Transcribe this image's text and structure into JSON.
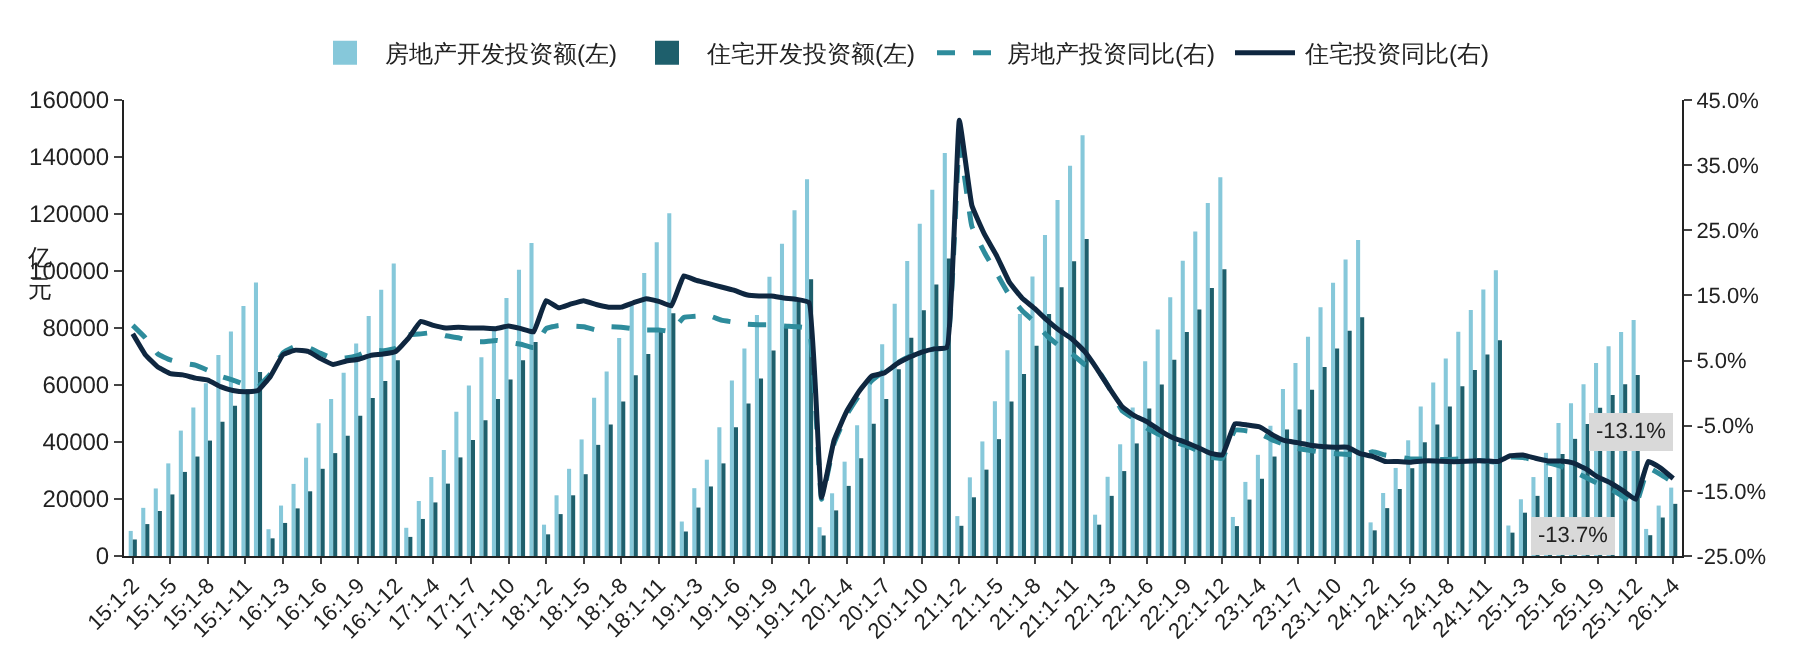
{
  "chart_data": {
    "type": "bar",
    "ylabel": "亿元",
    "categories": [
      "15:1-2",
      null,
      null,
      "15:1-5",
      null,
      null,
      "15:1-8",
      null,
      null,
      "15:1-11",
      null,
      null,
      "16:1-3",
      null,
      null,
      "16:1-6",
      null,
      null,
      "16:1-9",
      null,
      null,
      "16:1-12",
      null,
      null,
      "17:1-4",
      null,
      null,
      "17:1-7",
      null,
      null,
      "17:1-10",
      null,
      null,
      "18:1-2",
      null,
      null,
      "18:1-5",
      null,
      null,
      "18:1-8",
      null,
      null,
      "18:1-11",
      null,
      null,
      "19:1-3",
      null,
      null,
      "19:1-6",
      null,
      null,
      "19:1-9",
      null,
      null,
      "19:1-12",
      null,
      null,
      "20:1-4",
      null,
      null,
      "20:1-7",
      null,
      null,
      "20:1-10",
      null,
      null,
      "21:1-2",
      null,
      null,
      "21:1-5",
      null,
      null,
      "21:1-8",
      null,
      null,
      "21:1-11",
      null,
      null,
      "22:1-3",
      null,
      null,
      "22:1-6",
      null,
      null,
      "22:1-9",
      null,
      null,
      "22:1-12",
      null,
      null,
      "23:1-4",
      null,
      null,
      "23:1-7",
      null,
      null,
      "23:1-10",
      null,
      null,
      "24:1-2",
      null,
      null,
      "24:1-5",
      null,
      null,
      "24:1-8",
      null,
      null,
      "24:1-11",
      null,
      null,
      "25:1-3",
      null,
      null,
      "25:1-6",
      null,
      null,
      "25:1-9",
      null,
      null,
      "25:1-12",
      null,
      null,
      "26:1-4"
    ],
    "series": [
      {
        "name": "房地产开发投资额(左)",
        "color": "#86c8da",
        "values": [
          8800,
          16900,
          23700,
          32500,
          44000,
          52100,
          60600,
          70500,
          78800,
          87700,
          96000,
          9400,
          17700,
          25300,
          34500,
          46600,
          55100,
          64300,
          74600,
          84200,
          93400,
          102600,
          9900,
          19300,
          27700,
          37200,
          50600,
          59800,
          69700,
          80600,
          90500,
          100400,
          109800,
          11000,
          21300,
          30600,
          40900,
          55500,
          64700,
          76500,
          88900,
          99300,
          110100,
          120300,
          12100,
          23800,
          33800,
          45200,
          61600,
          72800,
          84600,
          98000,
          109600,
          121300,
          132200,
          10100,
          22000,
          33100,
          45900,
          62800,
          74300,
          88500,
          103500,
          116600,
          128500,
          141400,
          14000,
          27600,
          40200,
          54300,
          72200,
          84900,
          98100,
          112600,
          124900,
          136900,
          147600,
          14500,
          27800,
          39200,
          52100,
          68300,
          79500,
          90800,
          103600,
          113900,
          123900,
          132900,
          13700,
          26000,
          35500,
          45700,
          58600,
          67700,
          76900,
          87300,
          95900,
          104000,
          110900,
          11800,
          22100,
          30900,
          40600,
          52500,
          60900,
          69300,
          78700,
          86300,
          93500,
          100300,
          10700,
          19900,
          27700,
          36200,
          46700,
          53600,
          60300,
          67700,
          73600,
          78600,
          82800,
          9500,
          17700,
          24000
        ]
      },
      {
        "name": "住宅开发投资额(左)",
        "color": "#1e5f6c",
        "values": [
          5800,
          11200,
          15800,
          21600,
          29500,
          34900,
          40500,
          47100,
          52700,
          58500,
          64600,
          6200,
          11600,
          16700,
          22700,
          30600,
          36100,
          42200,
          49200,
          55400,
          61400,
          68700,
          6700,
          13000,
          18800,
          25400,
          34600,
          40700,
          47600,
          55100,
          61900,
          68700,
          75100,
          7600,
          14700,
          21300,
          28700,
          39000,
          46100,
          54200,
          63400,
          70900,
          78700,
          85200,
          8600,
          17000,
          24400,
          32500,
          45200,
          53500,
          62300,
          72100,
          80700,
          89300,
          97100,
          7200,
          16000,
          24600,
          34300,
          46400,
          55100,
          65500,
          76600,
          86200,
          95300,
          104400,
          10600,
          20600,
          30300,
          41000,
          54200,
          63900,
          73800,
          84900,
          94300,
          103400,
          111200,
          11000,
          21100,
          29800,
          39500,
          51800,
          60200,
          68900,
          78600,
          86500,
          94000,
          100600,
          10500,
          19800,
          27100,
          34900,
          44400,
          51400,
          58300,
          66300,
          72800,
          79000,
          83800,
          9000,
          16800,
          23500,
          30800,
          39900,
          46100,
          52500,
          59600,
          65300,
          70700,
          75700,
          8200,
          15200,
          21100,
          27700,
          35800,
          41100,
          46300,
          52000,
          56500,
          60300,
          63500,
          7300,
          13500,
          18300
        ]
      },
      {
        "name": "房地产投资同比(右)",
        "type": "line",
        "axis": "y2",
        "line_style": "dashed",
        "color": "#2e8c9c",
        "values": [
          10.4,
          8.5,
          6.0,
          5.1,
          4.6,
          4.3,
          3.5,
          2.6,
          2.0,
          1.3,
          1.0,
          3.0,
          6.2,
          7.2,
          7.0,
          6.1,
          5.3,
          5.4,
          5.8,
          6.6,
          6.5,
          6.9,
          8.9,
          9.1,
          9.3,
          8.8,
          8.5,
          7.9,
          7.9,
          8.1,
          7.8,
          7.5,
          7.0,
          9.9,
          10.4,
          10.3,
          10.2,
          9.7,
          10.2,
          10.1,
          9.9,
          9.7,
          9.7,
          9.5,
          11.6,
          11.8,
          11.9,
          11.2,
          10.9,
          10.6,
          10.5,
          10.5,
          10.3,
          10.2,
          9.9,
          -16.3,
          -7.7,
          -3.3,
          -0.3,
          1.9,
          3.4,
          4.6,
          5.6,
          6.3,
          6.8,
          7.0,
          38.3,
          25.6,
          21.6,
          18.3,
          15.0,
          12.7,
          10.9,
          8.8,
          7.2,
          6.0,
          4.4,
          3.7,
          0.7,
          -2.7,
          -4.0,
          -5.4,
          -6.4,
          -7.4,
          -8.0,
          -8.8,
          -9.8,
          -10.0,
          -5.7,
          -5.8,
          -6.2,
          -7.2,
          -7.9,
          -8.5,
          -8.8,
          -9.1,
          -9.3,
          -9.4,
          -9.6,
          -9.0,
          -9.5,
          -9.8,
          -10.1,
          -10.1,
          -10.2,
          -10.2,
          -10.1,
          -10.3,
          -10.4,
          -10.6,
          -9.8,
          -9.9,
          -10.3,
          -10.7,
          -11.2,
          -12.0,
          -12.9,
          -13.9,
          -14.7,
          -15.9,
          -17.2,
          -11.5,
          -12.5,
          -13.7
        ]
      },
      {
        "name": "住宅投资同比(右)",
        "type": "line",
        "axis": "y2",
        "line_style": "solid",
        "color": "#0f2740",
        "values": [
          9.1,
          5.9,
          4.0,
          3.0,
          2.8,
          2.3,
          2.0,
          1.0,
          0.4,
          0.2,
          0.4,
          2.6,
          5.9,
          6.6,
          6.4,
          5.3,
          4.4,
          4.9,
          5.2,
          5.8,
          6.0,
          6.4,
          8.4,
          11.0,
          10.4,
          10.0,
          10.1,
          10.0,
          10.0,
          9.9,
          10.3,
          9.9,
          9.4,
          14.2,
          13.1,
          13.7,
          14.2,
          13.6,
          13.2,
          13.2,
          13.9,
          14.5,
          14.1,
          13.4,
          18.0,
          17.3,
          16.8,
          16.3,
          15.8,
          15.1,
          14.9,
          14.9,
          14.6,
          14.4,
          13.9,
          -16.0,
          -7.2,
          -2.8,
          0.3,
          2.6,
          3.1,
          4.5,
          5.5,
          6.3,
          6.8,
          7.0,
          41.9,
          28.8,
          24.4,
          21.0,
          17.0,
          14.6,
          13.0,
          11.2,
          9.6,
          8.3,
          6.4,
          3.7,
          0.7,
          -2.1,
          -3.5,
          -4.4,
          -5.7,
          -6.8,
          -7.5,
          -8.3,
          -9.2,
          -9.5,
          -4.7,
          -4.9,
          -5.2,
          -6.4,
          -7.3,
          -7.6,
          -8.0,
          -8.2,
          -8.3,
          -8.3,
          -9.3,
          -9.7,
          -10.5,
          -10.5,
          -10.6,
          -10.4,
          -10.4,
          -10.5,
          -10.5,
          -10.4,
          -10.4,
          -10.5,
          -9.6,
          -9.5,
          -10.0,
          -10.4,
          -10.4,
          -10.7,
          -11.6,
          -12.9,
          -13.8,
          -15.0,
          -16.3,
          -10.5,
          -11.5,
          -13.1
        ]
      }
    ],
    "ylim": [
      0,
      160000
    ],
    "yticks": [
      0,
      20000,
      40000,
      60000,
      80000,
      100000,
      120000,
      140000,
      160000
    ],
    "y2lim": [
      -25,
      45
    ],
    "y2ticks": [
      {
        "value": 45,
        "label": "45.0%"
      },
      {
        "value": 35,
        "label": "35.0%"
      },
      {
        "value": 25,
        "label": "25.0%"
      },
      {
        "value": 15,
        "label": "15.0%"
      },
      {
        "value": 5,
        "label": "5.0%"
      },
      {
        "value": -5,
        "label": "-5.0%"
      },
      {
        "value": -15,
        "label": "-15.0%"
      },
      {
        "value": -25,
        "label": "-25.0%"
      }
    ],
    "annotations": [
      "-13.1%",
      "-13.7%"
    ],
    "legend": "top",
    "grid": false
  }
}
